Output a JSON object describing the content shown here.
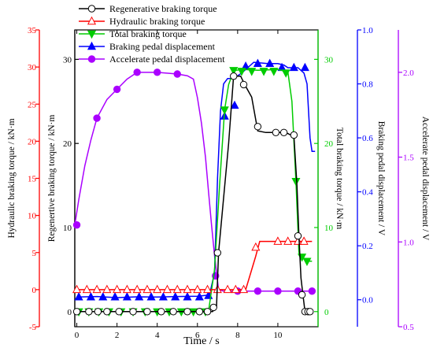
{
  "chart_data": {
    "type": "line",
    "xlabel": "Time  / s",
    "xlim": [
      -0.1,
      12.0
    ],
    "xticks": [
      "0",
      "2",
      "4",
      "6",
      "8",
      "10"
    ],
    "axes": [
      {
        "id": "hyd",
        "label": "Hydraulic braking torque / kN·m",
        "ylim": [
          -5,
          35
        ],
        "ticks": [
          "-5",
          "0",
          "5",
          "10",
          "15",
          "20",
          "25",
          "30",
          "35"
        ],
        "color": "#ff0000"
      },
      {
        "id": "reg",
        "label": "Regenertive braking torque / kN·m",
        "ylim": [
          -1.8,
          33.5
        ],
        "ticks": [
          "0",
          "10",
          "20",
          "30"
        ],
        "color": "#000000"
      },
      {
        "id": "tot",
        "label": "Total braking torque / kN·m",
        "ylim": [
          -1.8,
          33.5
        ],
        "ticks": [
          "0",
          "10",
          "20",
          "30"
        ],
        "color": "#00cc00"
      },
      {
        "id": "bpd",
        "label": "Braking pedal displacement / V",
        "ylim": [
          -0.1,
          1.0
        ],
        "ticks": [
          "0.0",
          "0.2",
          "0.4",
          "0.6",
          "0.8",
          "1.0"
        ],
        "color": "#0000ff"
      },
      {
        "id": "apd",
        "label": "Accelerate pedal displacement / V",
        "ylim": [
          0.5,
          2.25
        ],
        "ticks": [
          "0.5",
          "1.0",
          "1.5",
          "2.0"
        ],
        "color": "#aa00ff"
      }
    ],
    "legend": {
      "position": "top-left"
    },
    "series": [
      {
        "name": "Regenerative braking torque",
        "axis": "reg",
        "color": "#000000",
        "marker": "circle-open",
        "line_x": [
          0,
          6.75,
          6.95,
          7.05,
          7.55,
          7.8,
          8.15,
          8.35,
          8.7,
          9.0,
          9.4,
          10.4,
          10.8,
          10.95,
          11.05,
          11.15,
          11.25,
          11.35,
          11.5,
          11.6,
          11.7
        ],
        "line_y": [
          0,
          0,
          0.5,
          7.0,
          20.0,
          28.0,
          28.0,
          27.0,
          25.5,
          21.5,
          21.3,
          21.3,
          20.8,
          15.0,
          9.0,
          4.0,
          2.0,
          0,
          0,
          0,
          0
        ],
        "marker_x": [
          0,
          0.6,
          1.05,
          1.5,
          2.1,
          2.8,
          3.5,
          4.2,
          4.8,
          5.5,
          6.1,
          6.5,
          6.8,
          7.0,
          7.8,
          8.3,
          9.0,
          9.9,
          10.3,
          10.8,
          11.0,
          11.2,
          11.35,
          11.5,
          11.6
        ],
        "marker_y": [
          0,
          0,
          0,
          0,
          0,
          0,
          0,
          0,
          0,
          0,
          0,
          0,
          0.5,
          7.0,
          28.0,
          27.0,
          22.0,
          21.3,
          21.3,
          21.0,
          9.0,
          2.0,
          0,
          0,
          0
        ]
      },
      {
        "name": "Hydraulic braking torque",
        "axis": "hyd",
        "color": "#ff0000",
        "marker": "triangle-up-open",
        "line_x": [
          0,
          8.4,
          8.9,
          9.1,
          11.7
        ],
        "line_y": [
          0,
          0,
          4.5,
          6.5,
          6.5
        ],
        "marker_x": [
          0,
          0.5,
          1.0,
          1.5,
          2.0,
          2.5,
          3.0,
          3.5,
          4.0,
          4.5,
          5.0,
          5.5,
          6.0,
          6.5,
          7.0,
          7.5,
          7.9,
          8.3,
          8.9,
          10.0,
          10.5,
          11.0,
          11.3
        ],
        "marker_y": [
          0,
          0,
          0,
          0,
          0,
          0,
          0,
          0,
          0,
          0,
          0,
          0,
          0,
          0,
          0,
          0,
          0,
          0,
          5.7,
          6.5,
          6.5,
          6.5,
          6.5
        ]
      },
      {
        "name": "Total braking torque",
        "axis": "tot",
        "color": "#00cc00",
        "marker": "triangle-down-filled",
        "line_x": [
          0,
          6.55,
          6.85,
          7.1,
          7.35,
          7.55,
          7.75,
          7.9,
          8.3,
          9.0,
          10.0,
          10.5,
          10.7,
          10.9,
          11.05,
          11.2,
          11.4,
          11.6,
          11.7
        ],
        "line_y": [
          0,
          0,
          5.0,
          15.0,
          24.0,
          27.0,
          28.3,
          28.7,
          28.8,
          28.7,
          28.8,
          28.5,
          25.0,
          15.5,
          7.0,
          6.5,
          6.0,
          6.0,
          6.0
        ],
        "marker_x": [
          0.1,
          0.6,
          1.1,
          1.6,
          2.2,
          2.8,
          3.4,
          4.0,
          4.6,
          5.2,
          5.8,
          6.4,
          7.35,
          7.8,
          8.2,
          8.7,
          9.3,
          9.8,
          10.4,
          10.9,
          11.2,
          11.45
        ],
        "marker_y": [
          0,
          0,
          0,
          0,
          0,
          0,
          0,
          0,
          0,
          0,
          0,
          0,
          24.0,
          28.7,
          28.6,
          28.6,
          28.6,
          28.6,
          28.4,
          15.5,
          6.5,
          6.0
        ]
      },
      {
        "name": "Braking pedal displacement",
        "axis": "bpd",
        "color": "#0000ff",
        "marker": "triangle-up-filled",
        "line_x": [
          0,
          1,
          2,
          3,
          4,
          5,
          6,
          6.6,
          6.85,
          7.0,
          7.15,
          7.3,
          7.5,
          7.8,
          8.2,
          8.5,
          8.8,
          9.5,
          10.0,
          10.3,
          10.5,
          11.0,
          11.3,
          11.45,
          11.6,
          11.7,
          11.85
        ],
        "line_y": [
          0.01,
          0.012,
          0.008,
          0.011,
          0.01,
          0.012,
          0.013,
          0.018,
          0.1,
          0.45,
          0.7,
          0.8,
          0.82,
          0.82,
          0.84,
          0.86,
          0.88,
          0.875,
          0.875,
          0.87,
          0.86,
          0.86,
          0.84,
          0.8,
          0.6,
          0.55,
          0.55
        ],
        "marker_x": [
          0.1,
          0.7,
          1.3,
          1.9,
          2.5,
          3.1,
          3.7,
          4.3,
          4.9,
          5.5,
          6.1,
          6.55,
          7.35,
          7.85,
          8.4,
          9.0,
          9.6,
          10.2,
          10.8,
          11.35
        ],
        "marker_y": [
          0.01,
          0.01,
          0.01,
          0.01,
          0.01,
          0.01,
          0.01,
          0.01,
          0.01,
          0.01,
          0.01,
          0.015,
          0.68,
          0.72,
          0.865,
          0.875,
          0.875,
          0.86,
          0.86,
          0.86
        ]
      },
      {
        "name": "Accelerate pedal displacement",
        "axis": "apd",
        "color": "#aa00ff",
        "marker": "circle-filled",
        "line_x": [
          -0.1,
          0.1,
          0.4,
          0.7,
          1.0,
          1.5,
          2.0,
          2.5,
          3.0,
          4.0,
          5.0,
          5.5,
          5.8,
          6.0,
          6.2,
          6.4,
          6.55,
          6.7,
          6.85,
          7.05,
          7.3,
          8.0,
          9.0,
          10.0,
          11.0,
          11.7
        ],
        "line_y": [
          1.1,
          1.25,
          1.45,
          1.6,
          1.73,
          1.84,
          1.9,
          1.96,
          2.0,
          2.0,
          1.99,
          1.98,
          1.96,
          1.85,
          1.7,
          1.5,
          1.3,
          1.1,
          0.92,
          0.72,
          0.71,
          0.71,
          0.71,
          0.71,
          0.71,
          0.71
        ],
        "marker_x": [
          0,
          1.0,
          2.0,
          3.0,
          4.0,
          5.0,
          6.9,
          8.0,
          9.0,
          10.0,
          11.0,
          11.7
        ],
        "marker_y": [
          1.1,
          1.73,
          1.9,
          2.0,
          2.0,
          1.99,
          0.8,
          0.71,
          0.71,
          0.71,
          0.71,
          0.71
        ]
      }
    ]
  }
}
